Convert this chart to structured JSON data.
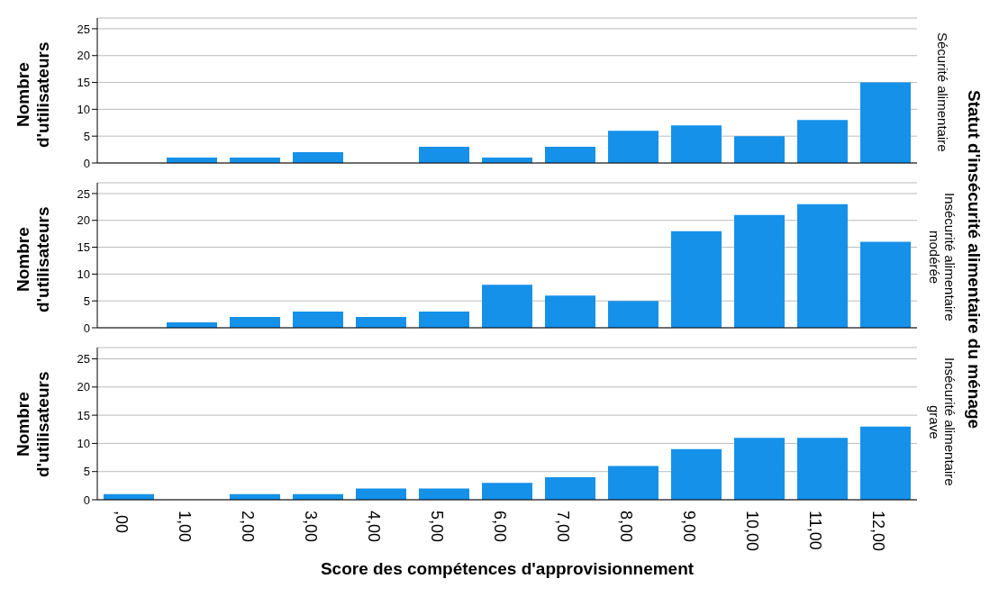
{
  "chart_data": [
    {
      "type": "bar",
      "y2label": "Sécurité alimentaire",
      "ylabel": "Nombre d'utilisateurs",
      "annotations": [
        "Statut d'insécurité alimentaire du ménage"
      ],
      "categories": [
        ",00",
        "1,00",
        "2,00",
        "3,00",
        "4,00",
        "5,00",
        "6,00",
        "7,00",
        "8,00",
        "9,00",
        "10,00",
        "11,00",
        "12,00"
      ],
      "values": [
        0,
        1,
        1,
        2,
        0,
        3,
        1,
        3,
        6,
        7,
        5,
        8,
        15
      ],
      "color": "#1591ea",
      "ylim": [
        0,
        27
      ],
      "yticks": [
        0,
        5,
        10,
        15,
        20,
        25
      ],
      "grid": "y",
      "tick_labels": "y"
    },
    {
      "type": "bar",
      "y2label": "Insécurité alimentaire modérée",
      "ylabel": "Nombre d'utilisateurs",
      "categories": [
        ",00",
        "1,00",
        "2,00",
        "3,00",
        "4,00",
        "5,00",
        "6,00",
        "7,00",
        "8,00",
        "9,00",
        "10,00",
        "11,00",
        "12,00"
      ],
      "values": [
        0,
        1,
        2,
        3,
        2,
        3,
        8,
        6,
        5,
        18,
        21,
        23,
        16
      ],
      "color": "#1591ea",
      "ylim": [
        0,
        27
      ],
      "yticks": [
        0,
        5,
        10,
        15,
        20,
        25
      ],
      "grid": "y",
      "tick_labels": "y"
    },
    {
      "type": "bar",
      "y2label": "Insécurité alimentaire grave",
      "ylabel": "Nombre d'utilisateurs",
      "xlabel": "Score des compétences d'approvisionnement",
      "categories": [
        ",00",
        "1,00",
        "2,00",
        "3,00",
        "4,00",
        "5,00",
        "6,00",
        "7,00",
        "8,00",
        "9,00",
        "10,00",
        "11,00",
        "12,00"
      ],
      "values": [
        1,
        0,
        1,
        1,
        2,
        2,
        3,
        4,
        6,
        9,
        11,
        11,
        13
      ],
      "color": "#1591ea",
      "ylim": [
        0,
        27
      ],
      "yticks": [
        0,
        5,
        10,
        15,
        20,
        25
      ],
      "grid": "y"
    }
  ]
}
